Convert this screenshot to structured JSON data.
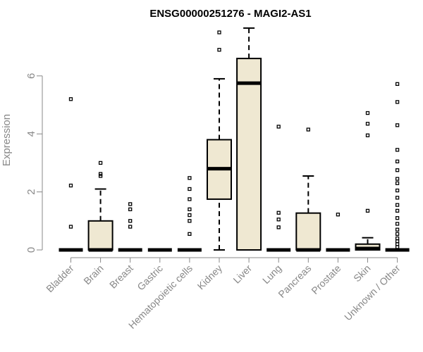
{
  "chart_data": {
    "type": "boxplot",
    "title": "ENSG00000251276 - MAGI2-AS1",
    "xlabel": "",
    "ylabel": "Expression",
    "ylim": [
      0,
      7.7
    ],
    "yticks": [
      0,
      2,
      4,
      6
    ],
    "box_fill": "#efe8d2",
    "categories": [
      "Bladder",
      "Brain",
      "Breast",
      "Gastric",
      "Hematopoietic cells",
      "Kidney",
      "Liver",
      "Lung",
      "Pancreas",
      "Prostate",
      "Skin",
      "Unknown / Other"
    ],
    "boxes": [
      {
        "min": 0,
        "q1": 0,
        "median": 0,
        "q3": 0,
        "max": 0,
        "outliers": [
          0.8,
          2.22,
          5.2
        ]
      },
      {
        "min": 0,
        "q1": 0,
        "median": 0,
        "q3": 1.0,
        "max": 2.1,
        "outliers": [
          2.55,
          2.62,
          3.0
        ]
      },
      {
        "min": 0,
        "q1": 0,
        "median": 0,
        "q3": 0,
        "max": 0,
        "outliers": [
          0.8,
          1.0,
          1.4,
          1.58
        ]
      },
      {
        "min": 0,
        "q1": 0,
        "median": 0,
        "q3": 0,
        "max": 0,
        "outliers": []
      },
      {
        "min": 0,
        "q1": 0,
        "median": 0,
        "q3": 0,
        "max": 0,
        "outliers": [
          0.55,
          1.0,
          1.2,
          1.4,
          1.75,
          2.1,
          2.48
        ]
      },
      {
        "min": 0,
        "q1": 1.75,
        "median": 2.8,
        "q3": 3.8,
        "max": 5.9,
        "outliers": [
          6.9,
          7.5
        ]
      },
      {
        "min": 0,
        "q1": 0,
        "median": 5.75,
        "q3": 6.6,
        "max": 7.65,
        "outliers": []
      },
      {
        "min": 0,
        "q1": 0,
        "median": 0,
        "q3": 0,
        "max": 0,
        "outliers": [
          0.78,
          1.05,
          1.28,
          4.25
        ]
      },
      {
        "min": 0,
        "q1": 0,
        "median": 0,
        "q3": 1.27,
        "max": 2.55,
        "outliers": [
          4.15
        ]
      },
      {
        "min": 0,
        "q1": 0,
        "median": 0,
        "q3": 0,
        "max": 0,
        "outliers": [
          1.22
        ]
      },
      {
        "min": 0,
        "q1": 0,
        "median": 0.05,
        "q3": 0.2,
        "max": 0.42,
        "outliers": [
          1.35,
          3.95,
          4.35,
          4.72
        ]
      },
      {
        "min": 0,
        "q1": 0,
        "median": 0,
        "q3": 0,
        "max": 0,
        "outliers": [
          0.1,
          0.2,
          0.3,
          0.4,
          0.55,
          0.7,
          0.9,
          1.1,
          1.35,
          1.55,
          1.8,
          2.05,
          2.3,
          2.45,
          2.75,
          3.05,
          3.45,
          4.3,
          5.1,
          5.72
        ]
      }
    ]
  }
}
